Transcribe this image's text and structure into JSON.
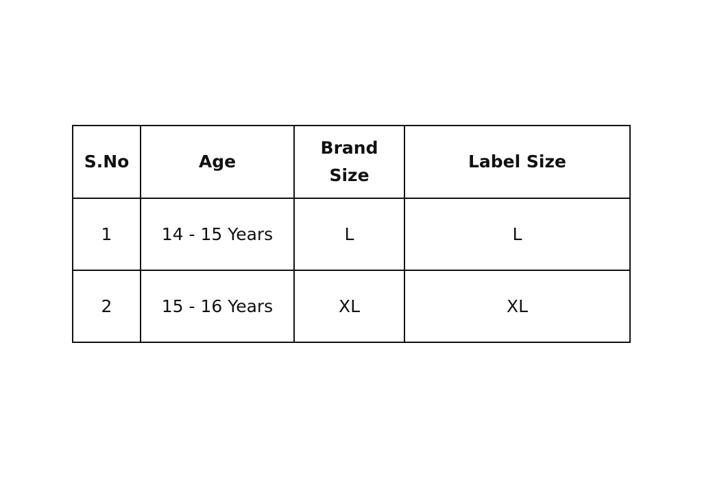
{
  "table": {
    "headers": [
      "S.No",
      "Age",
      "Brand\nSize",
      "Label Size"
    ],
    "rows": [
      [
        "1",
        "14 - 15 Years",
        "L",
        "L"
      ],
      [
        "2",
        "15 - 16 Years",
        "XL",
        "XL"
      ]
    ]
  }
}
